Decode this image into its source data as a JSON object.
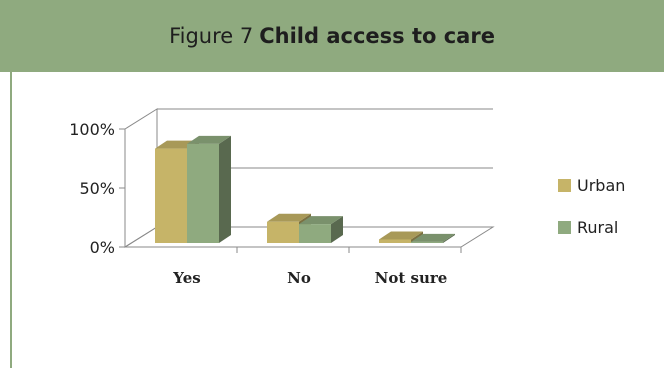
{
  "figure": {
    "prefix": "Figure 7",
    "title": "Child access to care"
  },
  "chart_data": {
    "type": "bar",
    "categories": [
      "Yes",
      "No",
      "Not sure"
    ],
    "series": [
      {
        "name": "Urban",
        "values": [
          80,
          18,
          3
        ]
      },
      {
        "name": "Rural",
        "values": [
          84,
          16,
          1
        ]
      }
    ],
    "yticks": [
      "0%",
      "50%",
      "100%"
    ],
    "ylim": [
      0,
      100
    ],
    "grid": true,
    "legend": "right",
    "colors": {
      "Urban": "#c6b468",
      "Rural": "#8faa7f"
    }
  }
}
